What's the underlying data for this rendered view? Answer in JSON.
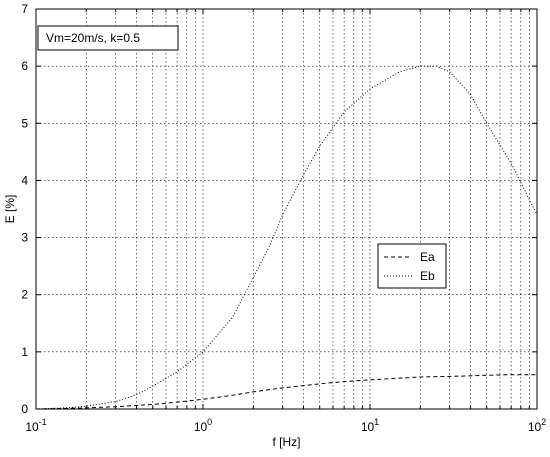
{
  "chart_data": {
    "type": "line",
    "xscale": "log",
    "xlabel": "f [Hz]",
    "ylabel": "E [%]",
    "xlim": [
      0.1,
      100
    ],
    "ylim": [
      0,
      7
    ],
    "grid": true,
    "x_ticks": [
      0.1,
      1,
      10,
      100
    ],
    "x_tick_labels": [
      {
        "base": "10",
        "exp": "-1"
      },
      {
        "base": "10",
        "exp": "0"
      },
      {
        "base": "10",
        "exp": "1"
      },
      {
        "base": "10",
        "exp": "2"
      }
    ],
    "y_ticks": [
      0,
      1,
      2,
      3,
      4,
      5,
      6,
      7
    ],
    "y_tick_labels": [
      "0",
      "1",
      "2",
      "3",
      "4",
      "5",
      "6",
      "7"
    ],
    "annotation": "Vm=20m/s, k=0.5",
    "legend_position": "center-right",
    "series": [
      {
        "name": "Ea",
        "style": "dashed",
        "x": [
          0.1,
          0.15,
          0.2,
          0.3,
          0.5,
          0.7,
          1,
          1.5,
          2,
          3,
          5,
          7,
          10,
          15,
          20,
          30,
          50,
          70,
          100
        ],
        "y": [
          0.0,
          0.01,
          0.02,
          0.04,
          0.08,
          0.12,
          0.17,
          0.24,
          0.3,
          0.37,
          0.44,
          0.48,
          0.51,
          0.54,
          0.56,
          0.57,
          0.59,
          0.6,
          0.6
        ]
      },
      {
        "name": "Eb",
        "style": "dotted",
        "x": [
          0.1,
          0.15,
          0.2,
          0.3,
          0.4,
          0.5,
          0.7,
          1,
          1.5,
          2,
          2.5,
          3,
          4,
          5,
          7,
          10,
          15,
          20,
          25,
          30,
          40,
          50,
          70,
          100
        ],
        "y": [
          0.0,
          0.02,
          0.05,
          0.13,
          0.25,
          0.4,
          0.65,
          1.0,
          1.6,
          2.3,
          2.85,
          3.4,
          4.1,
          4.6,
          5.2,
          5.6,
          5.9,
          6.0,
          6.0,
          5.9,
          5.5,
          5.0,
          4.3,
          3.4
        ]
      }
    ]
  }
}
